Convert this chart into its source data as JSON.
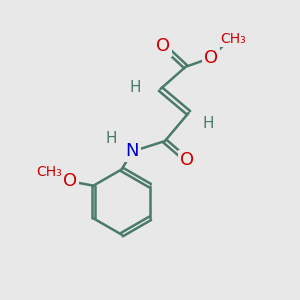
{
  "bg_color": "#e8e8e8",
  "bond_color": "#4a7a6a",
  "bond_width": 1.8,
  "atom_colors": {
    "O": "#cc0000",
    "N": "#0000cc",
    "H": "#4a7a6a",
    "C": "#4a7a6a"
  },
  "font_size_atom": 13,
  "figsize": [
    3.0,
    3.0
  ],
  "dpi": 100
}
